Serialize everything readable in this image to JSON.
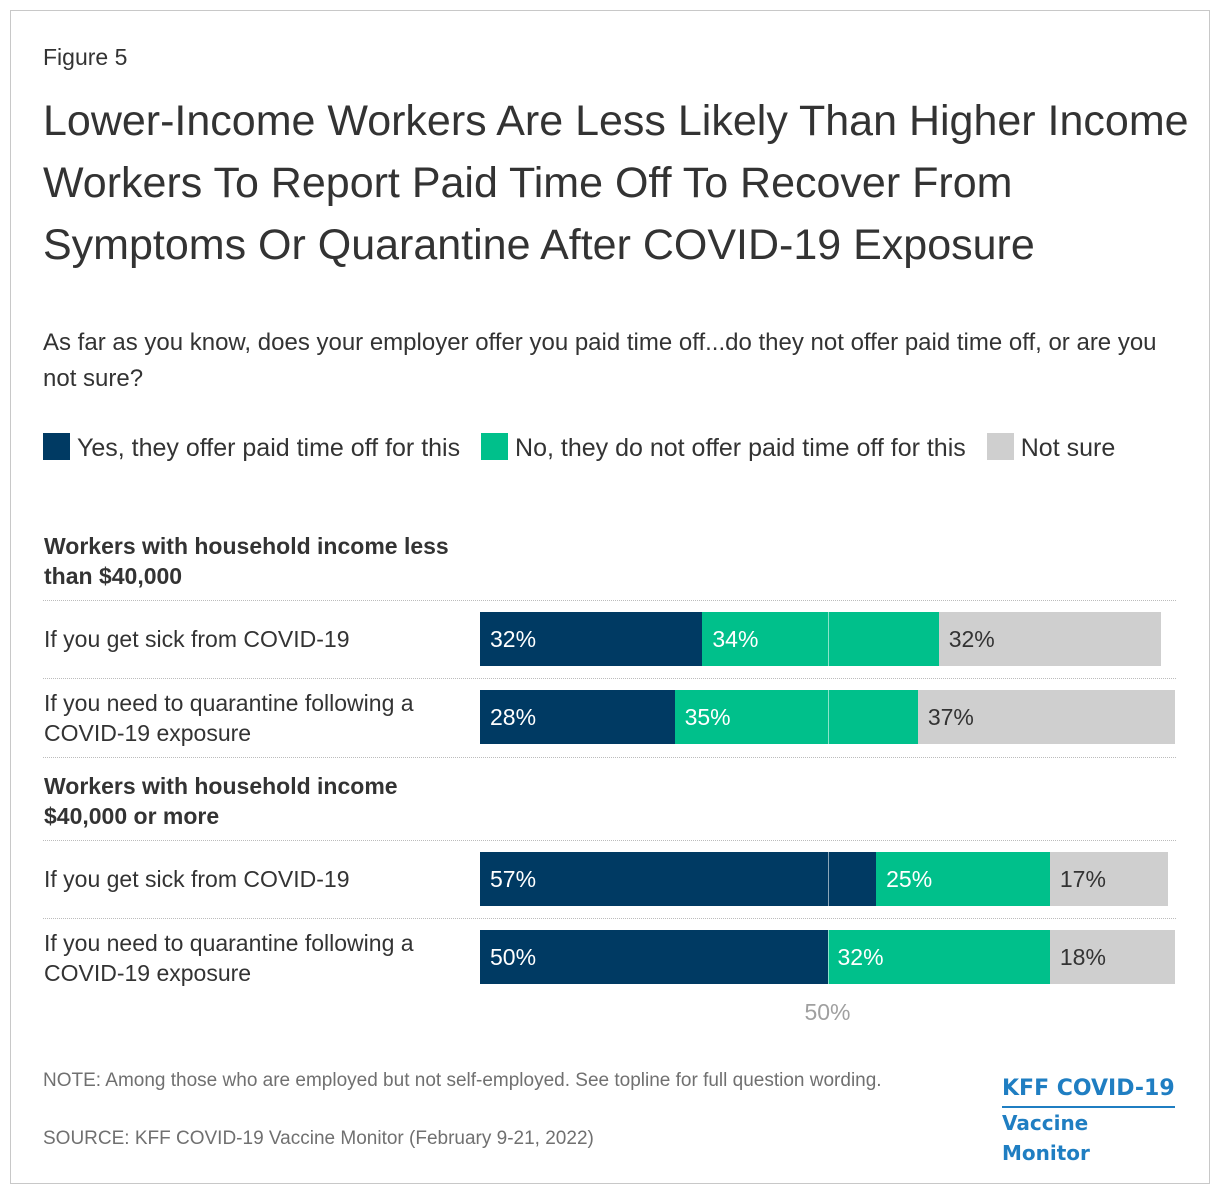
{
  "figure_label": "Figure 5",
  "title": "Lower-Income Workers Are Less Likely Than Higher Income Workers To Report Paid Time Off To Recover From Symptoms Or Quarantine After COVID-19 Exposure",
  "subtitle": "As far as you know, does your employer offer you paid time off...do they not offer paid time off, or are you not sure?",
  "colors": {
    "yes": "#003a63",
    "no": "#00c08b",
    "not_sure": "#cfcfcf"
  },
  "chart_data": {
    "type": "bar",
    "orientation": "horizontal",
    "stacked": true,
    "xlim": [
      0,
      100
    ],
    "reference_line": {
      "value": 50,
      "label": "50%"
    },
    "legend": [
      {
        "key": "yes",
        "label": "Yes, they offer paid time off for this"
      },
      {
        "key": "no",
        "label": "No, they do not offer paid time off for this"
      },
      {
        "key": "not_sure",
        "label": "Not sure"
      }
    ],
    "groups": [
      {
        "label": "Workers with household income less than $40,000",
        "rows": [
          {
            "label": "If you get sick from COVID-19",
            "values": {
              "yes": 32,
              "no": 34,
              "not_sure": 32
            },
            "display": {
              "yes": "32%",
              "no": "34%",
              "not_sure": "32%"
            }
          },
          {
            "label": "If you need to quarantine following a COVID-19 exposure",
            "values": {
              "yes": 28,
              "no": 35,
              "not_sure": 37
            },
            "display": {
              "yes": "28%",
              "no": "35%",
              "not_sure": "37%"
            }
          }
        ]
      },
      {
        "label": "Workers with household income $40,000 or more",
        "rows": [
          {
            "label": "If you get sick from COVID-19",
            "values": {
              "yes": 57,
              "no": 25,
              "not_sure": 17
            },
            "display": {
              "yes": "57%",
              "no": "25%",
              "not_sure": "17%"
            }
          },
          {
            "label": "If you need to quarantine following a COVID-19 exposure",
            "values": {
              "yes": 50,
              "no": 32,
              "not_sure": 18
            },
            "display": {
              "yes": "50%",
              "no": "32%",
              "not_sure": "18%"
            }
          }
        ]
      }
    ]
  },
  "note": "NOTE: Among those who are employed but not self-employed. See topline for full question wording.",
  "source": "SOURCE: KFF COVID-19 Vaccine Monitor (February 9-21, 2022)",
  "brand": {
    "line1": "KFF COVID-19",
    "line2": "Vaccine Monitor"
  }
}
